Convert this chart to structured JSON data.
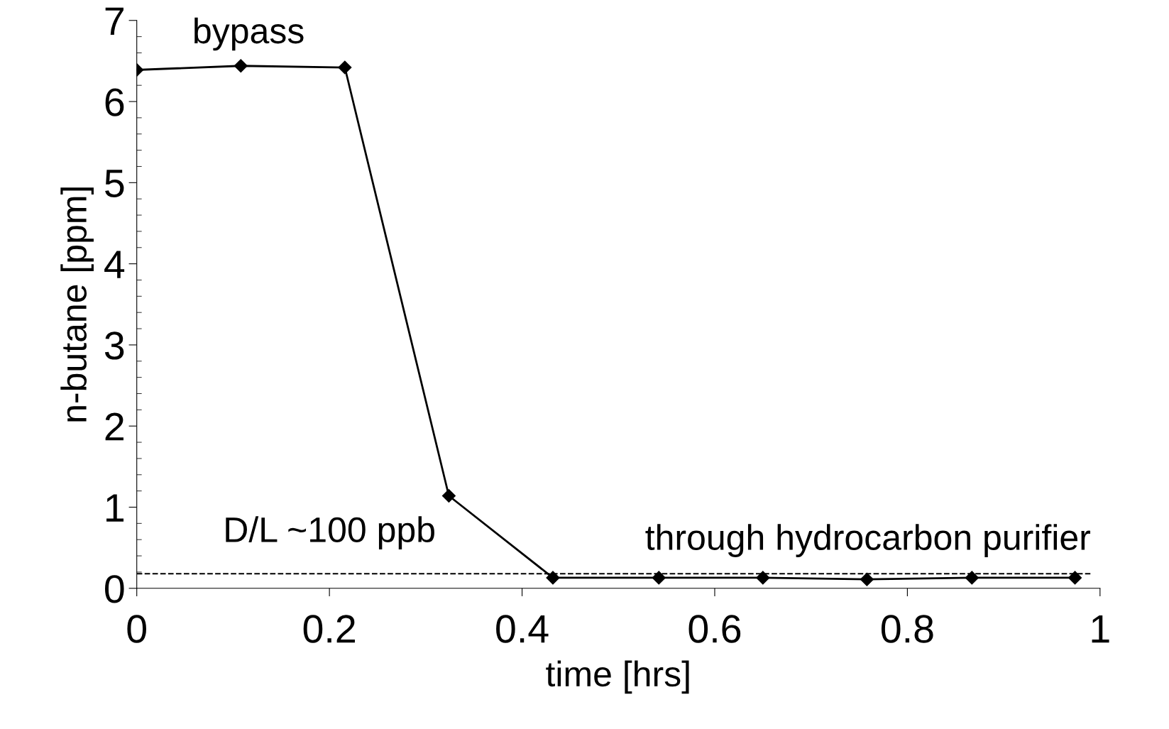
{
  "chart_data": {
    "type": "line",
    "xlabel": "time [hrs]",
    "ylabel": "n-butane [ppm]",
    "x": [
      0,
      0.108,
      0.216,
      0.324,
      0.432,
      0.542,
      0.65,
      0.758,
      0.867,
      0.974
    ],
    "series": [
      {
        "color": "#000000",
        "values": [
          6.39,
          6.44,
          6.42,
          1.14,
          0.13,
          0.13,
          0.13,
          0.11,
          0.13,
          0.13
        ]
      }
    ],
    "marker": "diamond",
    "line_style": "solid",
    "xlim": [
      0,
      1
    ],
    "xticks": [
      0,
      0.2,
      0.4,
      0.6,
      0.8,
      1
    ],
    "ylim": [
      0,
      7
    ],
    "yticks": [
      0,
      1,
      2,
      3,
      4,
      5,
      6,
      7
    ],
    "ref_lines": [
      {
        "axis": "y",
        "value": 0.18,
        "label": "D/L ~100 ppb",
        "color": "#000000",
        "line_style": "dashed"
      }
    ],
    "annotations": [
      "bypass",
      "through hydrocarbon purifier"
    ],
    "grid": false
  }
}
